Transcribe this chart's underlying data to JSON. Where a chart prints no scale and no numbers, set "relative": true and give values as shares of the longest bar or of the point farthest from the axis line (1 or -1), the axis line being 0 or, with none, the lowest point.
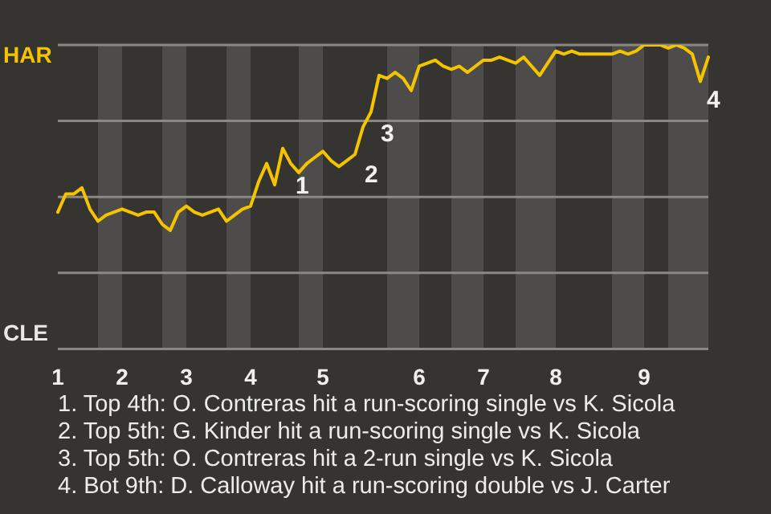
{
  "chart_data": {
    "type": "line",
    "relative": true,
    "categories": [
      "1",
      null,
      null,
      null,
      null,
      null,
      null,
      null,
      "2",
      null,
      null,
      null,
      null,
      null,
      null,
      null,
      "3",
      null,
      null,
      null,
      null,
      null,
      null,
      null,
      "4",
      null,
      null,
      null,
      null,
      null,
      null,
      null,
      null,
      "5",
      null,
      null,
      null,
      null,
      null,
      null,
      null,
      null,
      null,
      null,
      null,
      "6",
      null,
      null,
      null,
      null,
      null,
      null,
      null,
      "7",
      null,
      null,
      null,
      null,
      null,
      null,
      null,
      null,
      "8",
      null,
      null,
      null,
      null,
      null,
      null,
      null,
      null,
      null,
      null,
      "9",
      null,
      null,
      null,
      null,
      null,
      null,
      null,
      null
    ],
    "series": [
      {
        "color": "#f5c400",
        "values": [
          0.45,
          0.51,
          0.51,
          0.53,
          0.46,
          0.42,
          0.44,
          0.45,
          0.46,
          0.45,
          0.44,
          0.45,
          0.45,
          0.41,
          0.39,
          0.45,
          0.47,
          0.45,
          0.44,
          0.45,
          0.46,
          0.42,
          0.44,
          0.46,
          0.47,
          0.55,
          0.61,
          0.54,
          0.66,
          0.61,
          0.58,
          0.61,
          0.63,
          0.65,
          0.62,
          0.6,
          0.62,
          0.64,
          0.73,
          0.78,
          0.9,
          0.89,
          0.91,
          0.89,
          0.85,
          0.93,
          0.94,
          0.95,
          0.93,
          0.92,
          0.93,
          0.91,
          0.93,
          0.95,
          0.95,
          0.96,
          0.95,
          0.94,
          0.96,
          0.93,
          0.9,
          0.94,
          0.98,
          0.97,
          0.98,
          0.97,
          0.97,
          0.97,
          0.97,
          0.97,
          0.98,
          0.97,
          0.98,
          1,
          1,
          1,
          0.99,
          1,
          0.99,
          0.97,
          0.88,
          0.96
        ],
        "line_style": "solid"
      }
    ],
    "grid": "y",
    "annotations": [
      "HAR",
      "CLE",
      "1",
      "2",
      "3",
      "4",
      "1. Top 4th: O. Contreras hit a run-scoring single vs K. Sicola",
      "2. Top 5th: G. Kinder hit a run-scoring single vs K. Sicola",
      "3. Top 5th: O. Contreras hit a 2-run single vs K. Sicola",
      "4. Bot 9th: D. Calloway hit a run-scoring double vs J. Carter"
    ]
  }
}
